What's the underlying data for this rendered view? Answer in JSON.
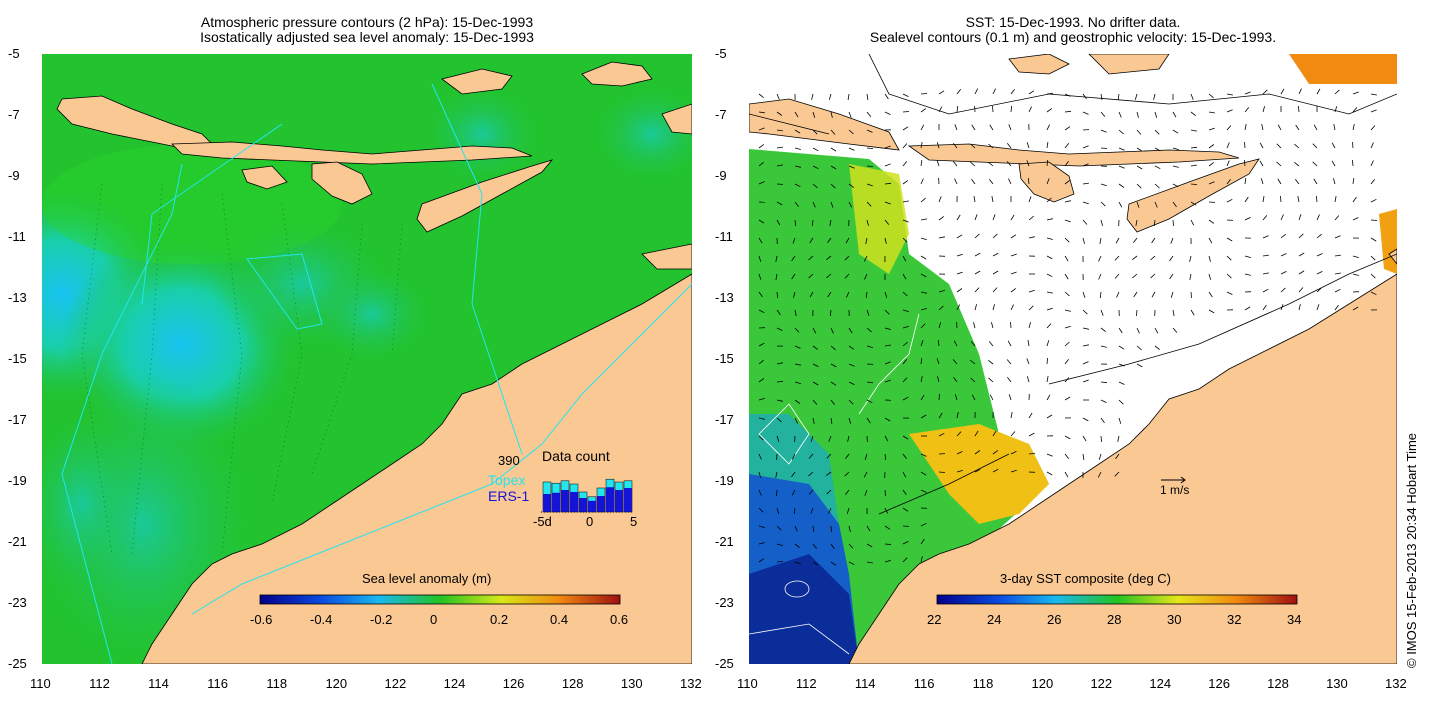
{
  "left_panel": {
    "title_line1": "Atmospheric pressure contours (2 hPa): 15-Dec-1993",
    "title_line2": "Isostatically adjusted sea level anomaly: 15-Dec-1993",
    "y_ticks": [
      "-5",
      "-7",
      "-9",
      "-11",
      "-13",
      "-15",
      "-17",
      "-19",
      "-21",
      "-23",
      "-25"
    ],
    "x_ticks": [
      "110",
      "112",
      "114",
      "116",
      "118",
      "120",
      "122",
      "124",
      "126",
      "128",
      "130",
      "132"
    ],
    "colorbar": {
      "label": "Sea level anomaly (m)",
      "ticks": [
        "-0.6",
        "-0.4",
        "-0.2",
        "0",
        "0.2",
        "0.4",
        "0.6"
      ]
    },
    "data_count": {
      "title": "Data count",
      "total": "390",
      "topex_label": "Topex",
      "ers_label": "ERS-1",
      "x_ticks": [
        "-5d",
        "0",
        "5"
      ],
      "topex_values": [
        0.75,
        0.72,
        0.78,
        0.7,
        0.5,
        0.38,
        0.6,
        0.82,
        0.75,
        0.78
      ],
      "ers_values": [
        0.45,
        0.48,
        0.55,
        0.5,
        0.35,
        0.28,
        0.4,
        0.62,
        0.55,
        0.6
      ]
    }
  },
  "right_panel": {
    "title_line1": "SST: 15-Dec-1993. No drifter data.",
    "title_line2": "Sealevel contours (0.1 m) and geostrophic velocity: 15-Dec-1993.",
    "y_ticks": [
      "-5",
      "-7",
      "-9",
      "-11",
      "-13",
      "-15",
      "-17",
      "-19",
      "-21",
      "-23",
      "-25"
    ],
    "x_ticks": [
      "110",
      "112",
      "114",
      "116",
      "118",
      "120",
      "122",
      "124",
      "126",
      "128",
      "130",
      "132"
    ],
    "colorbar": {
      "label": "3-day SST composite (deg C)",
      "ticks": [
        "22",
        "24",
        "26",
        "28",
        "30",
        "32",
        "34"
      ]
    },
    "velocity_scale_label": "1 m/s"
  },
  "credit": "© IMOS 15-Feb-2013 20:34 Hobart Time",
  "colors": {
    "land": "#f9c893",
    "ocean_green": "#22c322",
    "ocean_teal": "#18c98a",
    "ocean_cyan": "#17d2e6",
    "topex": "#22e5ef",
    "ers": "#1414d6"
  }
}
